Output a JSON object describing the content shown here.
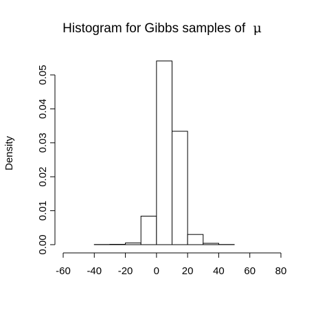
{
  "chart_data": {
    "type": "bar",
    "title": "Histogram for Gibbs samples of",
    "title_symbol": "μ",
    "xlabel": "",
    "ylabel": "Density",
    "xlim": [
      -60,
      80
    ],
    "ylim": [
      0,
      0.05
    ],
    "xticks": [
      "-60",
      "-40",
      "-20",
      "0",
      "20",
      "40",
      "60",
      "80"
    ],
    "yticks": [
      "0.00",
      "0.01",
      "0.02",
      "0.03",
      "0.04",
      "0.05"
    ],
    "bin_edges": [
      -60,
      -50,
      -40,
      -30,
      -20,
      -10,
      0,
      10,
      20,
      30,
      40,
      50,
      60,
      70,
      80
    ],
    "values": [
      0.0,
      0.0,
      5e-05,
      0.0001,
      0.0005,
      0.0084,
      0.0541,
      0.0334,
      0.003,
      0.0004,
      5e-05,
      0.0,
      0.0,
      0.0
    ],
    "grid": false,
    "colors": {
      "bar_fill": "#ffffff",
      "bar_stroke": "#000000",
      "axis": "#000000"
    }
  }
}
